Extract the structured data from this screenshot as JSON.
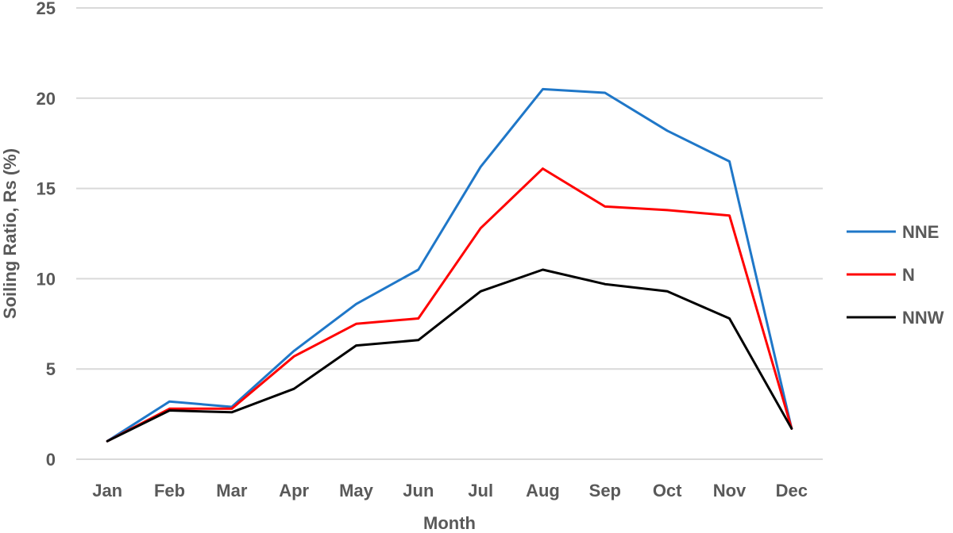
{
  "chart_data": {
    "type": "line",
    "title": "",
    "xlabel": "Month",
    "ylabel": "Soiling Ratio, Rs (%)",
    "ylim": [
      0,
      25
    ],
    "yticks": [
      0,
      5,
      10,
      15,
      20,
      25
    ],
    "grid": true,
    "legend_position": "right",
    "categories": [
      "Jan",
      "Feb",
      "Mar",
      "Apr",
      "May",
      "Jun",
      "Jul",
      "Aug",
      "Sep",
      "Oct",
      "Nov",
      "Dec"
    ],
    "series": [
      {
        "name": "NNE",
        "color": "#1f77c8",
        "values": [
          1.0,
          3.2,
          2.9,
          6.0,
          8.6,
          10.5,
          16.2,
          20.5,
          20.3,
          18.2,
          16.5,
          1.7
        ]
      },
      {
        "name": "N",
        "color": "#ff0000",
        "values": [
          1.0,
          2.8,
          2.8,
          5.7,
          7.5,
          7.8,
          12.8,
          16.1,
          14.0,
          13.8,
          13.5,
          1.7
        ]
      },
      {
        "name": "NNW",
        "color": "#000000",
        "values": [
          1.0,
          2.7,
          2.6,
          3.9,
          6.3,
          6.6,
          9.3,
          10.5,
          9.7,
          9.3,
          7.8,
          1.7
        ]
      }
    ]
  }
}
